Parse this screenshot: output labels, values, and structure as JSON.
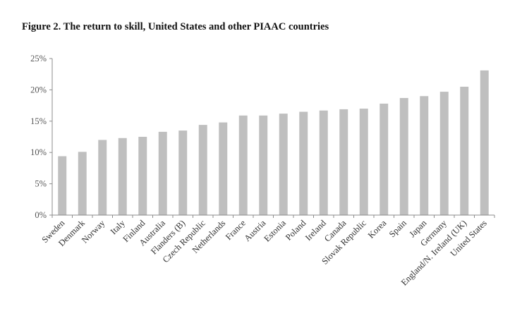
{
  "figure": {
    "title": "Figure 2. The return to skill, United States and other PIAAC countries"
  },
  "chart_data": {
    "type": "bar",
    "title": "Figure 2. The return to skill, United States and other PIAAC countries",
    "xlabel": "",
    "ylabel": "",
    "categories": [
      "Sweden",
      "Denmark",
      "Norway",
      "Italy",
      "Finland",
      "Australia",
      "Flanders (B)",
      "Czech Republic",
      "Netherlands",
      "France",
      "Austria",
      "Estonia",
      "Poland",
      "Ireland",
      "Canada",
      "Slovak Republic",
      "Korea",
      "Spain",
      "Japan",
      "Germany",
      "England/N. Ireland (UK)",
      "United States"
    ],
    "values": [
      9.4,
      10.1,
      12.0,
      12.3,
      12.5,
      13.3,
      13.5,
      14.4,
      14.8,
      15.9,
      15.9,
      16.2,
      16.5,
      16.7,
      16.9,
      17.0,
      17.8,
      18.7,
      19.0,
      19.7,
      20.5,
      23.1
    ],
    "ylim": [
      0,
      25
    ],
    "yticks": [
      0,
      5,
      10,
      15,
      20,
      25
    ],
    "ytick_labels": [
      "0%",
      "5%",
      "10%",
      "15%",
      "20%",
      "25%"
    ],
    "grid": false,
    "legend": "none",
    "bar_color": "#bfbfbf",
    "axis_color": "#8c8c8c"
  }
}
